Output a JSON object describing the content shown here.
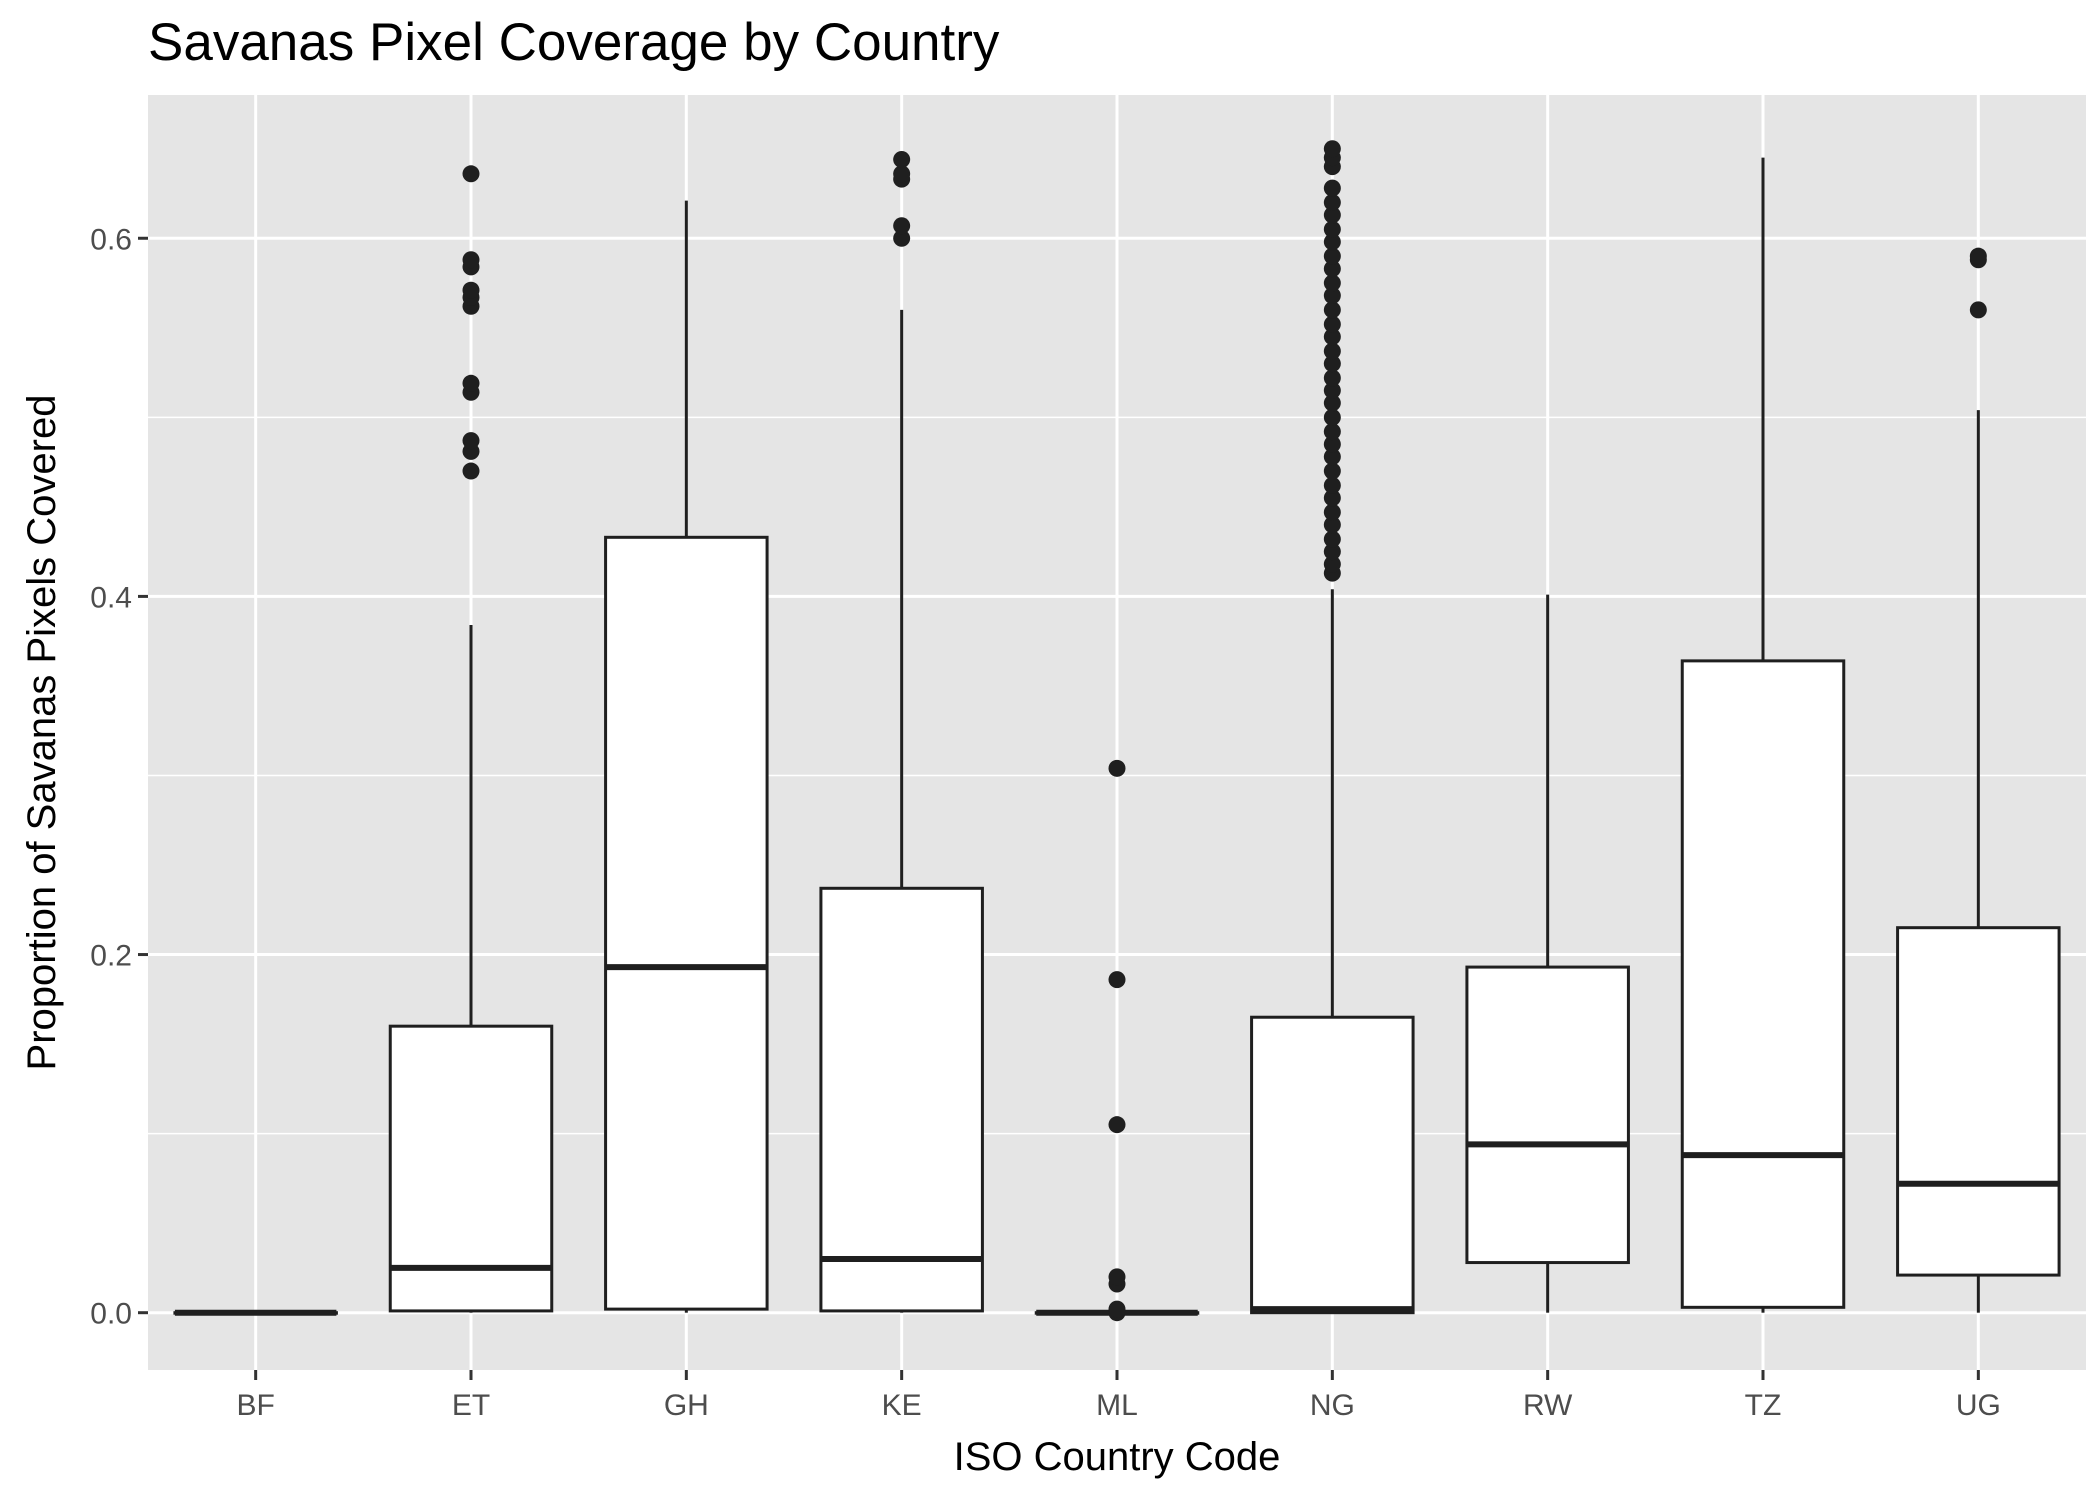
{
  "chart_data": {
    "type": "boxplot",
    "title": "Savanas Pixel Coverage by Country",
    "xlabel": "ISO Country Code",
    "ylabel": "Proportion of Savanas Pixels Covered",
    "ylim": [
      -0.032,
      0.68
    ],
    "y_ticks": [
      0.0,
      0.2,
      0.4,
      0.6
    ],
    "y_tick_labels": [
      "0.0",
      "0.2",
      "0.4",
      "0.6"
    ],
    "grid": true,
    "categories": [
      "BF",
      "ET",
      "GH",
      "KE",
      "ML",
      "NG",
      "RW",
      "TZ",
      "UG"
    ],
    "boxes": [
      {
        "category": "BF",
        "min": 0.0,
        "q1": 0.0,
        "median": 0.0,
        "q3": 0.0,
        "max": 0.0,
        "outliers": []
      },
      {
        "category": "ET",
        "min": 0.0,
        "q1": 0.001,
        "median": 0.025,
        "q3": 0.16,
        "max": 0.384,
        "outliers": [
          0.47,
          0.481,
          0.487,
          0.514,
          0.519,
          0.562,
          0.567,
          0.571,
          0.584,
          0.588,
          0.636
        ]
      },
      {
        "category": "GH",
        "min": 0.0,
        "q1": 0.002,
        "median": 0.193,
        "q3": 0.433,
        "max": 0.621,
        "outliers": []
      },
      {
        "category": "KE",
        "min": 0.0,
        "q1": 0.001,
        "median": 0.03,
        "q3": 0.237,
        "max": 0.56,
        "outliers": [
          0.6,
          0.607,
          0.633,
          0.636,
          0.644
        ]
      },
      {
        "category": "ML",
        "min": 0.0,
        "q1": 0.0,
        "median": 0.0,
        "q3": 0.0,
        "max": 0.0,
        "outliers": [
          0.0,
          0.002,
          0.016,
          0.02,
          0.105,
          0.186,
          0.304
        ]
      },
      {
        "category": "NG",
        "min": 0.0,
        "q1": 0.0,
        "median": 0.002,
        "q3": 0.165,
        "max": 0.404,
        "outliers": [
          0.413,
          0.418,
          0.425,
          0.432,
          0.44,
          0.447,
          0.455,
          0.462,
          0.47,
          0.478,
          0.485,
          0.492,
          0.5,
          0.508,
          0.515,
          0.522,
          0.53,
          0.537,
          0.545,
          0.552,
          0.56,
          0.568,
          0.575,
          0.583,
          0.59,
          0.598,
          0.605,
          0.613,
          0.62,
          0.628,
          0.64,
          0.645,
          0.65
        ]
      },
      {
        "category": "RW",
        "min": 0.0,
        "q1": 0.028,
        "median": 0.094,
        "q3": 0.193,
        "max": 0.401,
        "outliers": []
      },
      {
        "category": "TZ",
        "min": 0.0,
        "q1": 0.003,
        "median": 0.088,
        "q3": 0.364,
        "max": 0.645,
        "outliers": []
      },
      {
        "category": "UG",
        "min": 0.0,
        "q1": 0.021,
        "median": 0.072,
        "q3": 0.215,
        "max": 0.504,
        "outliers": [
          0.56,
          0.588,
          0.59
        ]
      }
    ],
    "colors": {
      "panel_background": "#e5e5e5",
      "grid": "#ffffff",
      "box_fill": "#ffffff",
      "box_stroke": "#1f1f1f",
      "outlier": "#1f1f1f",
      "tick_label": "#4d4d4d",
      "axis_title": "#000000"
    }
  }
}
